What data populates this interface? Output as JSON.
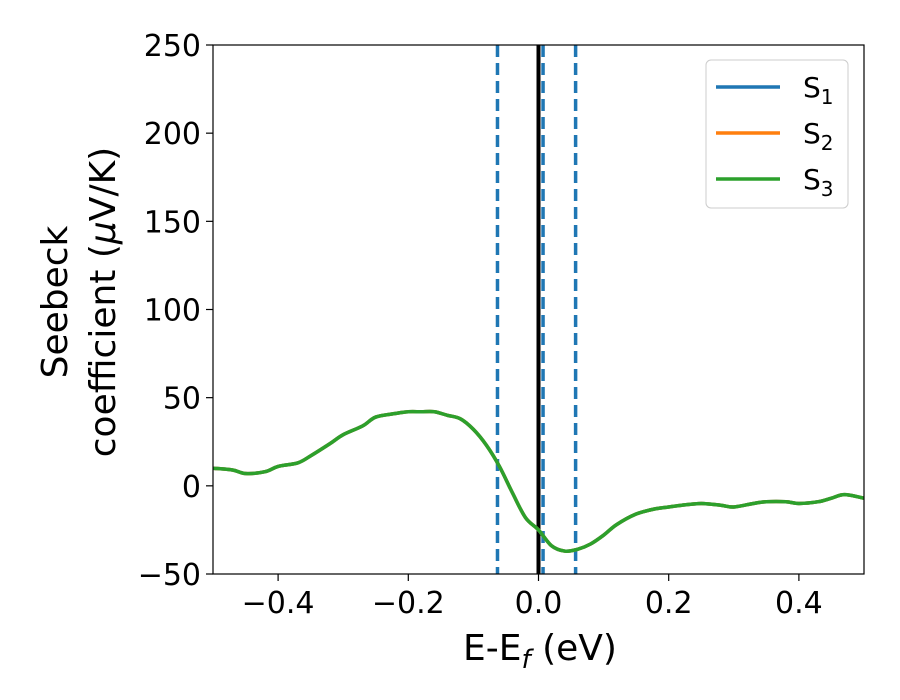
{
  "chart_data": {
    "type": "line",
    "xlabel": "E-E",
    "xlabel_sub": "f",
    "xlabel_unit": " (eV)",
    "ylabel_line1": "Seebeck",
    "ylabel_line2": "coefficient  (",
    "ylabel_mu": "μ",
    "ylabel_unit": "V/K)",
    "xlim": [
      -0.5,
      0.5
    ],
    "ylim": [
      -50,
      250
    ],
    "xticks": [
      -0.4,
      -0.2,
      0.0,
      0.2,
      0.4
    ],
    "xtick_labels": [
      "−0.4",
      "−0.2",
      "0.0",
      "0.2",
      "0.4"
    ],
    "yticks": [
      -50,
      0,
      50,
      100,
      150,
      200,
      250
    ],
    "ytick_labels": [
      "−50",
      "0",
      "50",
      "100",
      "150",
      "200",
      "250"
    ],
    "grid": false,
    "legend_position": "top-right",
    "series": [
      {
        "name": "S",
        "sub": "1",
        "color": "#1f77b4",
        "x": [
          -0.5,
          -0.47,
          -0.45,
          -0.42,
          -0.4,
          -0.37,
          -0.35,
          -0.32,
          -0.3,
          -0.27,
          -0.25,
          -0.22,
          -0.2,
          -0.18,
          -0.16,
          -0.14,
          -0.12,
          -0.1,
          -0.08,
          -0.06,
          -0.04,
          -0.02,
          0.0,
          0.02,
          0.04,
          0.06,
          0.08,
          0.1,
          0.12,
          0.15,
          0.18,
          0.2,
          0.22,
          0.25,
          0.28,
          0.3,
          0.33,
          0.35,
          0.38,
          0.4,
          0.43,
          0.45,
          0.47,
          0.5
        ],
        "y": [
          10,
          9,
          7,
          8,
          11,
          13,
          17,
          24,
          29,
          34,
          39,
          41,
          42,
          42,
          42,
          40,
          38,
          32,
          23,
          11,
          -4,
          -18,
          -25,
          -34,
          -37,
          -36,
          -33,
          -28,
          -22,
          -16,
          -13,
          -12,
          -11,
          -10,
          -11,
          -12,
          -10,
          -9,
          -9,
          -10,
          -9,
          -7,
          -5,
          -7
        ]
      },
      {
        "name": "S",
        "sub": "2",
        "color": "#ff7f0e",
        "x": [
          -0.5,
          -0.47,
          -0.45,
          -0.42,
          -0.4,
          -0.37,
          -0.35,
          -0.32,
          -0.3,
          -0.27,
          -0.25,
          -0.22,
          -0.2,
          -0.18,
          -0.16,
          -0.14,
          -0.12,
          -0.1,
          -0.08,
          -0.06,
          -0.04,
          -0.02,
          0.0,
          0.02,
          0.04,
          0.06,
          0.08,
          0.1,
          0.12,
          0.15,
          0.18,
          0.2,
          0.22,
          0.25,
          0.28,
          0.3,
          0.33,
          0.35,
          0.38,
          0.4,
          0.43,
          0.45,
          0.47,
          0.5
        ],
        "y": [
          10,
          9,
          7,
          8,
          11,
          13,
          17,
          24,
          29,
          34,
          39,
          41,
          42,
          42,
          42,
          40,
          38,
          32,
          23,
          11,
          -4,
          -18,
          -25,
          -34,
          -37,
          -36,
          -33,
          -28,
          -22,
          -16,
          -13,
          -12,
          -11,
          -10,
          -11,
          -12,
          -10,
          -9,
          -9,
          -10,
          -9,
          -7,
          -5,
          -7
        ]
      },
      {
        "name": "S",
        "sub": "3",
        "color": "#2ca02c",
        "x": [
          -0.5,
          -0.47,
          -0.45,
          -0.42,
          -0.4,
          -0.37,
          -0.35,
          -0.32,
          -0.3,
          -0.27,
          -0.25,
          -0.22,
          -0.2,
          -0.18,
          -0.16,
          -0.14,
          -0.12,
          -0.1,
          -0.08,
          -0.06,
          -0.04,
          -0.02,
          0.0,
          0.02,
          0.04,
          0.06,
          0.08,
          0.1,
          0.12,
          0.15,
          0.18,
          0.2,
          0.22,
          0.25,
          0.28,
          0.3,
          0.33,
          0.35,
          0.38,
          0.4,
          0.43,
          0.45,
          0.47,
          0.5
        ],
        "y": [
          10,
          9,
          7,
          8,
          11,
          13,
          17,
          24,
          29,
          34,
          39,
          41,
          42,
          42,
          42,
          40,
          38,
          32,
          23,
          11,
          -4,
          -18,
          -25,
          -34,
          -37,
          -36,
          -33,
          -28,
          -22,
          -16,
          -13,
          -12,
          -11,
          -10,
          -11,
          -12,
          -10,
          -9,
          -9,
          -10,
          -9,
          -7,
          -5,
          -7
        ]
      }
    ],
    "vlines": [
      {
        "x": -0.063,
        "style": "dashed",
        "color": "#1f77b4"
      },
      {
        "x": 0.0,
        "style": "solid",
        "color": "#000000"
      },
      {
        "x": 0.007,
        "style": "dashed",
        "color": "#1f77b4"
      },
      {
        "x": 0.057,
        "style": "dashed",
        "color": "#1f77b4"
      }
    ]
  }
}
